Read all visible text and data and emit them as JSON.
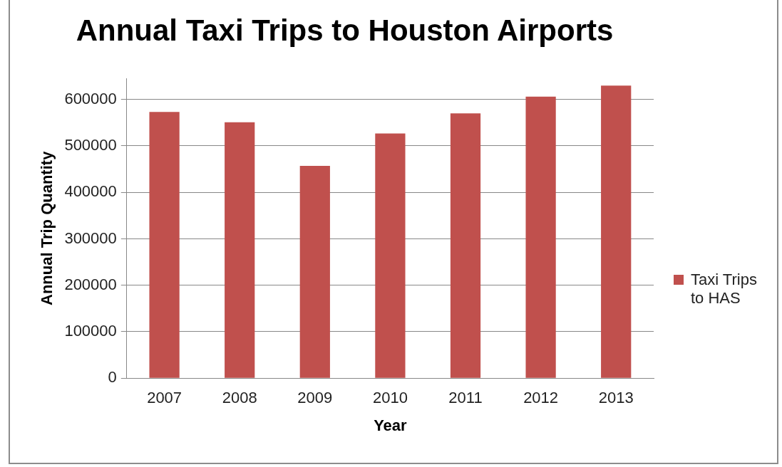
{
  "chart_data": {
    "type": "bar",
    "title": "Annual Taxi Trips to Houston Airports",
    "xlabel": "Year",
    "ylabel": "Annual Trip Quantity",
    "categories": [
      "2007",
      "2008",
      "2009",
      "2010",
      "2011",
      "2012",
      "2013"
    ],
    "series": [
      {
        "name": "Taxi Trips to HAS",
        "color": "#c0504d",
        "values": [
          573000,
          551000,
          457000,
          527000,
          570000,
          606000,
          630000
        ]
      }
    ],
    "ylim": [
      0,
      645000
    ],
    "yticks": [
      0,
      100000,
      200000,
      300000,
      400000,
      500000,
      600000
    ],
    "grid": "y",
    "legend": "right"
  }
}
